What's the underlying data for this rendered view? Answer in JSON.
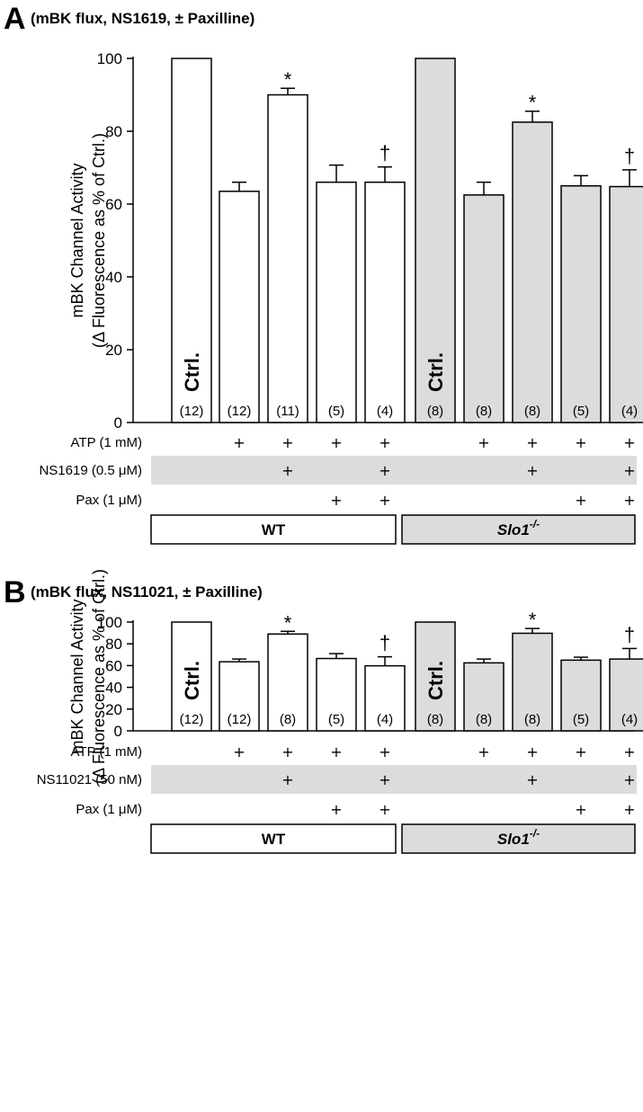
{
  "colors": {
    "wt_fill": "#ffffff",
    "slo1_fill": "#dcdcdc",
    "row_band": "#dcdcdc",
    "stroke": "#000000"
  },
  "chart_data": [
    {
      "type": "bar",
      "panel": "A",
      "title": "(mBK flux, NS1619, ± Paxilline)",
      "ylabel_line1": "mBK Channel Activity",
      "ylabel_line2": "(Δ Fluorescence as % of Ctrl.)",
      "ylim": [
        0,
        100
      ],
      "yticks": [
        0,
        20,
        40,
        60,
        80,
        100
      ],
      "bar_label": "Ctrl.",
      "values": [
        100,
        63.5,
        90,
        66,
        66,
        100,
        62.5,
        82.5,
        65,
        64.8
      ],
      "errors": [
        0,
        2.5,
        1.8,
        4.7,
        4.2,
        0,
        3.5,
        3,
        2.8,
        4.6
      ],
      "n": [
        "(12)",
        "(12)",
        "(11)",
        "(5)",
        "(4)",
        "(8)",
        "(8)",
        "(8)",
        "(5)",
        "(4)"
      ],
      "markers": [
        "",
        "",
        "*",
        "",
        "†",
        "",
        "",
        "*",
        "",
        "†"
      ],
      "groups": [
        "WT",
        "WT",
        "WT",
        "WT",
        "WT",
        "Slo1",
        "Slo1",
        "Slo1",
        "Slo1",
        "Slo1"
      ],
      "conditions": [
        {
          "label": "ATP (1 mM)",
          "band": false,
          "plus": [
            "",
            "+",
            "+",
            "+",
            "+",
            "",
            "+",
            "+",
            "+",
            "+"
          ]
        },
        {
          "label": "NS1619 (0.5 μM)",
          "band": true,
          "plus": [
            "",
            "",
            "+",
            "",
            "+",
            "",
            "",
            "+",
            "",
            "+"
          ]
        },
        {
          "label": "Pax (1 μM)",
          "band": false,
          "plus": [
            "",
            "",
            "",
            "+",
            "+",
            "",
            "",
            "",
            "+",
            "+"
          ]
        }
      ],
      "group_labels": {
        "wt": "WT",
        "ko_base": "Slo1",
        "ko_sup": "-/-"
      }
    },
    {
      "type": "bar",
      "panel": "B",
      "title": "(mBK flux, NS11021, ± Paxilline)",
      "ylabel_line1": "mBK Channel Activity",
      "ylabel_line2": "(Δ Fluorescence as % of Ctrl.)",
      "ylim": [
        0,
        100
      ],
      "yticks": [
        0,
        20,
        40,
        60,
        80,
        100
      ],
      "bar_label": "Ctrl.",
      "values": [
        100,
        63.5,
        89,
        66.5,
        59.8,
        100,
        62.5,
        89.7,
        65,
        66
      ],
      "errors": [
        0,
        2.5,
        2.5,
        4.5,
        8.3,
        0,
        3.5,
        4.4,
        2.7,
        9.7
      ],
      "n": [
        "(12)",
        "(12)",
        "(8)",
        "(5)",
        "(4)",
        "(8)",
        "(8)",
        "(8)",
        "(5)",
        "(4)"
      ],
      "markers": [
        "",
        "",
        "*",
        "",
        "†",
        "",
        "",
        "*",
        "",
        "†"
      ],
      "groups": [
        "WT",
        "WT",
        "WT",
        "WT",
        "WT",
        "Slo1",
        "Slo1",
        "Slo1",
        "Slo1",
        "Slo1"
      ],
      "conditions": [
        {
          "label": "ATP (1 mM)",
          "band": false,
          "plus": [
            "",
            "+",
            "+",
            "+",
            "+",
            "",
            "+",
            "+",
            "+",
            "+"
          ]
        },
        {
          "label": "NS11021 (50 nM)",
          "band": true,
          "plus": [
            "",
            "",
            "+",
            "",
            "+",
            "",
            "",
            "+",
            "",
            "+"
          ]
        },
        {
          "label": "Pax (1 μM)",
          "band": false,
          "plus": [
            "",
            "",
            "",
            "+",
            "+",
            "",
            "",
            "",
            "+",
            "+"
          ]
        }
      ],
      "group_labels": {
        "wt": "WT",
        "ko_base": "Slo1",
        "ko_sup": "-/-"
      }
    }
  ]
}
